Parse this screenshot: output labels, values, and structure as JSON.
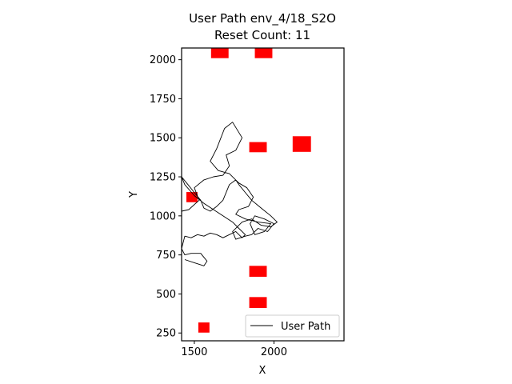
{
  "chart_data": {
    "type": "line",
    "title": "User Path env_4/18_S2O",
    "subtitle": "Reset Count: 11",
    "xlabel": "X",
    "ylabel": "Y",
    "xlim": [
      1420,
      2440
    ],
    "ylim": [
      200,
      2075
    ],
    "xticks": [
      1500,
      2000
    ],
    "yticks": [
      250,
      500,
      750,
      1000,
      1250,
      1500,
      1750,
      2000
    ],
    "grid": false,
    "legend": {
      "position": "lower-right",
      "entries": [
        "User Path"
      ]
    },
    "colors": {
      "path": "#000000",
      "obstacle": "#ff0000"
    },
    "obstacles": [
      {
        "x": 1660,
        "y": 2045,
        "w": 110,
        "h": 70
      },
      {
        "x": 1935,
        "y": 2045,
        "w": 110,
        "h": 70
      },
      {
        "x": 2175,
        "y": 1460,
        "w": 115,
        "h": 100
      },
      {
        "x": 1900,
        "y": 1440,
        "w": 110,
        "h": 65
      },
      {
        "x": 1485,
        "y": 1120,
        "w": 70,
        "h": 65
      },
      {
        "x": 1900,
        "y": 645,
        "w": 110,
        "h": 70
      },
      {
        "x": 1900,
        "y": 445,
        "w": 110,
        "h": 70
      },
      {
        "x": 1560,
        "y": 285,
        "w": 70,
        "h": 65
      }
    ],
    "series": [
      {
        "name": "User Path",
        "x": [
          1420,
          1465,
          1530,
          1500,
          1560,
          1620,
          1680,
          1720,
          1700,
          1760,
          1800,
          1740,
          1690,
          1640,
          1600,
          1650,
          1720,
          1780,
          1830,
          1870,
          1840,
          1780,
          1760,
          1820,
          1900,
          1980,
          1940,
          1880,
          1850,
          1880,
          1940,
          2000,
          1960,
          1900,
          1860,
          1820,
          1760,
          1740,
          1800,
          1860,
          1920,
          1980,
          2020,
          1980,
          1920,
          1860,
          1820,
          1780,
          1760,
          1720,
          1700,
          1680,
          1640,
          1600,
          1560,
          1540,
          1500,
          1460,
          1420,
          1440,
          1500,
          1560,
          1620,
          1680,
          1740,
          1780,
          1820,
          1800,
          1760,
          1720,
          1680,
          1640,
          1600,
          1560,
          1520,
          1480,
          1440,
          1420,
          1440,
          1480,
          1540,
          1580,
          1560,
          1500,
          1440
        ],
        "y": [
          1030,
          1040,
          1100,
          1180,
          1230,
          1250,
          1260,
          1320,
          1390,
          1420,
          1500,
          1600,
          1560,
          1430,
          1350,
          1290,
          1270,
          1210,
          1180,
          1120,
          1060,
          1040,
          1010,
          980,
          960,
          950,
          900,
          880,
          950,
          1000,
          980,
          950,
          900,
          920,
          880,
          870,
          850,
          900,
          960,
          980,
          940,
          930,
          960,
          1000,
          1050,
          1100,
          1150,
          1200,
          1230,
          1200,
          1150,
          1100,
          1060,
          1030,
          1050,
          1100,
          1150,
          1200,
          1250,
          1200,
          1130,
          1080,
          1040,
          1000,
          960,
          920,
          880,
          860,
          900,
          880,
          860,
          880,
          890,
          870,
          880,
          860,
          870,
          790,
          750,
          760,
          760,
          710,
          680,
          700,
          720
        ]
      }
    ]
  }
}
